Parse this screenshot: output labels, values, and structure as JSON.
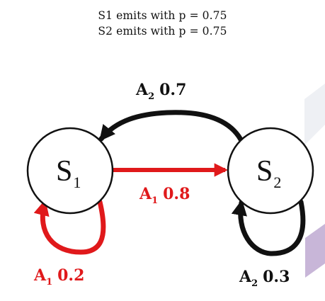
{
  "caption": {
    "line1": "S1 emits with p = 0.75",
    "line2": "S2 emits with p = 0.75"
  },
  "states": [
    {
      "id": "S1",
      "letter": "S",
      "sub": "1"
    },
    {
      "id": "S2",
      "letter": "S",
      "sub": "2"
    }
  ],
  "transitions": [
    {
      "id": "s1-to-s2",
      "letter": "A",
      "sub": "1",
      "prob": "0.8",
      "color": "#e0191b"
    },
    {
      "id": "s2-to-s1",
      "letter": "A",
      "sub": "2",
      "prob": "0.7",
      "color": "#111111"
    },
    {
      "id": "s1-self",
      "letter": "A",
      "sub": "1",
      "prob": "0.2",
      "color": "#e0191b"
    },
    {
      "id": "s2-self",
      "letter": "A",
      "sub": "2",
      "prob": "0.3",
      "color": "#111111"
    }
  ],
  "colors": {
    "red": "#e0191b",
    "black": "#111111",
    "deco_gray": "#eef0f4",
    "deco_purple": "#c8b6d8"
  }
}
